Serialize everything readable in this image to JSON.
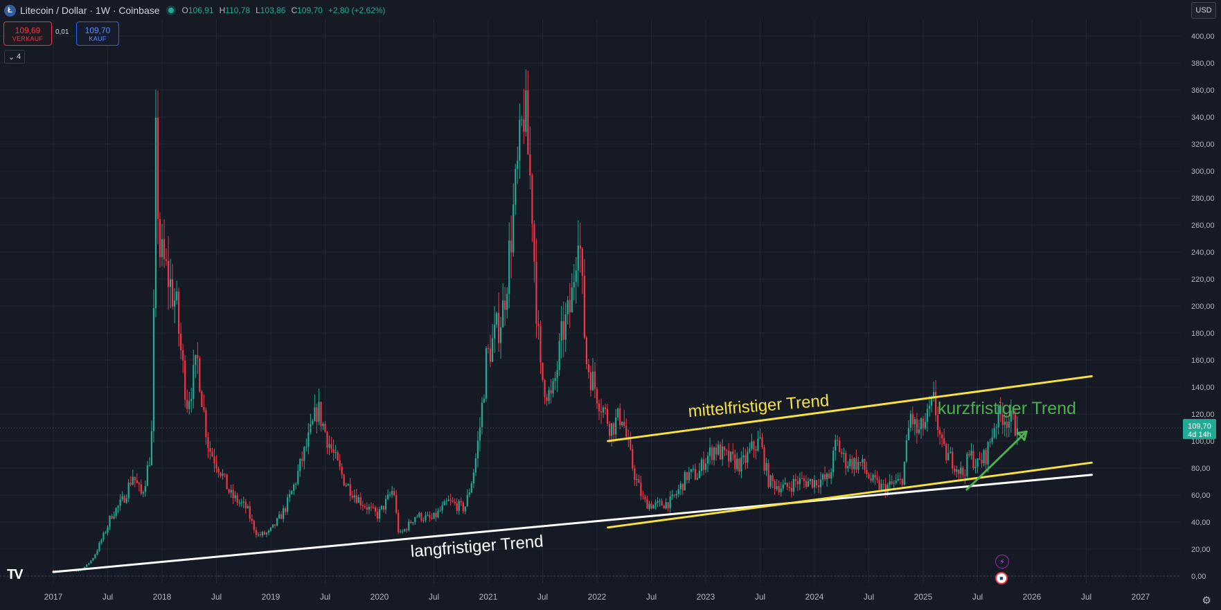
{
  "header": {
    "symbol": "Litecoin / Dollar · 1W · Coinbase",
    "coin_icon": "litecoin-icon",
    "ohlc": {
      "o_label": "O",
      "o_value": "106,91",
      "h_label": "H",
      "h_value": "110,78",
      "l_label": "L",
      "l_value": "103,86",
      "c_label": "C",
      "c_value": "109,70",
      "change": "+2,80 (+2,62%)"
    }
  },
  "trade": {
    "sell_price": "109,69",
    "sell_label": "VERKAUF",
    "spread": "0,01",
    "buy_price": "109,70",
    "buy_label": "KAUF"
  },
  "indicators": {
    "count": "4"
  },
  "currency": "USD",
  "price_tag": {
    "price": "109,70",
    "countdown": "4d 14h"
  },
  "colors": {
    "background": "#161a25",
    "up": "#22ab94",
    "down": "#f23645",
    "trend_mid": "#f7e13e",
    "trend_long": "#ffffff",
    "trend_short": "#4caf50",
    "price_tag": "#22ab94"
  },
  "chart_data": {
    "type": "candlestick",
    "title": "Litecoin / Dollar · 1W · Coinbase",
    "x_ticks": [
      "2017",
      "Jul",
      "2018",
      "Jul",
      "2019",
      "Jul",
      "2020",
      "Jul",
      "2021",
      "Jul",
      "2022",
      "Jul",
      "2023",
      "Jul",
      "2024",
      "Jul",
      "2025",
      "Jul",
      "2026",
      "Jul",
      "2027"
    ],
    "y_ticks": [
      "0,00",
      "20,00",
      "40,00",
      "60,00",
      "80,00",
      "100,00",
      "120,00",
      "140,00",
      "160,00",
      "180,00",
      "200,00",
      "220,00",
      "240,00",
      "260,00",
      "280,00",
      "300,00",
      "320,00",
      "340,00",
      "360,00",
      "380,00",
      "400,00"
    ],
    "ylim": [
      0,
      410
    ],
    "xlim": [
      2017.0,
      2027.0
    ],
    "grid": true,
    "price_series": [
      [
        2017.0,
        4.3
      ],
      [
        2017.25,
        4.0
      ],
      [
        2017.35,
        10
      ],
      [
        2017.45,
        25
      ],
      [
        2017.55,
        45
      ],
      [
        2017.65,
        55
      ],
      [
        2017.75,
        75
      ],
      [
        2017.83,
        60
      ],
      [
        2017.92,
        95
      ],
      [
        2017.96,
        320
      ],
      [
        2018.0,
        240
      ],
      [
        2018.08,
        220
      ],
      [
        2018.15,
        200
      ],
      [
        2018.25,
        130
      ],
      [
        2018.35,
        160
      ],
      [
        2018.45,
        95
      ],
      [
        2018.55,
        80
      ],
      [
        2018.65,
        60
      ],
      [
        2018.8,
        50
      ],
      [
        2018.9,
        30
      ],
      [
        2019.0,
        32
      ],
      [
        2019.15,
        50
      ],
      [
        2019.3,
        85
      ],
      [
        2019.45,
        125
      ],
      [
        2019.55,
        100
      ],
      [
        2019.7,
        70
      ],
      [
        2019.85,
        55
      ],
      [
        2020.0,
        45
      ],
      [
        2020.15,
        65
      ],
      [
        2020.2,
        30
      ],
      [
        2020.35,
        45
      ],
      [
        2020.5,
        42
      ],
      [
        2020.65,
        55
      ],
      [
        2020.8,
        50
      ],
      [
        2020.9,
        85
      ],
      [
        2021.0,
        160
      ],
      [
        2021.15,
        195
      ],
      [
        2021.25,
        270
      ],
      [
        2021.35,
        350
      ],
      [
        2021.42,
        280
      ],
      [
        2021.5,
        150
      ],
      [
        2021.6,
        130
      ],
      [
        2021.7,
        180
      ],
      [
        2021.78,
        200
      ],
      [
        2021.85,
        270
      ],
      [
        2021.92,
        160
      ],
      [
        2022.0,
        140
      ],
      [
        2022.15,
        110
      ],
      [
        2022.25,
        120
      ],
      [
        2022.35,
        80
      ],
      [
        2022.45,
        55
      ],
      [
        2022.55,
        52
      ],
      [
        2022.7,
        55
      ],
      [
        2022.85,
        75
      ],
      [
        2022.95,
        75
      ],
      [
        2023.0,
        85
      ],
      [
        2023.1,
        95
      ],
      [
        2023.2,
        88
      ],
      [
        2023.35,
        82
      ],
      [
        2023.45,
        95
      ],
      [
        2023.52,
        100
      ],
      [
        2023.6,
        70
      ],
      [
        2023.75,
        65
      ],
      [
        2023.85,
        70
      ],
      [
        2024.0,
        70
      ],
      [
        2024.15,
        72
      ],
      [
        2024.22,
        100
      ],
      [
        2024.3,
        85
      ],
      [
        2024.45,
        83
      ],
      [
        2024.55,
        70
      ],
      [
        2024.65,
        65
      ],
      [
        2024.75,
        68
      ],
      [
        2024.82,
        70
      ],
      [
        2024.9,
        120
      ],
      [
        2024.97,
        105
      ],
      [
        2025.05,
        115
      ],
      [
        2025.12,
        130
      ],
      [
        2025.2,
        92
      ],
      [
        2025.3,
        85
      ],
      [
        2025.38,
        75
      ],
      [
        2025.45,
        90
      ],
      [
        2025.52,
        82
      ],
      [
        2025.6,
        90
      ],
      [
        2025.68,
        115
      ],
      [
        2025.75,
        120
      ],
      [
        2025.82,
        115
      ],
      [
        2025.88,
        109.7
      ]
    ],
    "annotations": [
      {
        "text": "mittelfristiger Trend",
        "color": "#f7e13e"
      },
      {
        "text": "kurzfristiger Trend",
        "color": "#4caf50"
      },
      {
        "text": "langfristiger Trend",
        "color": "#ffffff"
      }
    ],
    "trend_lines": [
      {
        "name": "langfristiger Trend",
        "color": "#ffffff",
        "from": [
          2017.0,
          3
        ],
        "to": [
          2026.55,
          75
        ]
      },
      {
        "name": "mittelfristiger Trend oben",
        "color": "#f7e13e",
        "from": [
          2022.1,
          100
        ],
        "to": [
          2026.55,
          148
        ]
      },
      {
        "name": "mittelfristiger Trend unten",
        "color": "#f7e13e",
        "from": [
          2022.1,
          36
        ],
        "to": [
          2026.55,
          84
        ]
      },
      {
        "name": "kurzfristiger Trend",
        "color": "#4caf50",
        "from": [
          2025.4,
          64
        ],
        "to": [
          2025.95,
          107
        ]
      }
    ],
    "current_price": 109.7
  }
}
